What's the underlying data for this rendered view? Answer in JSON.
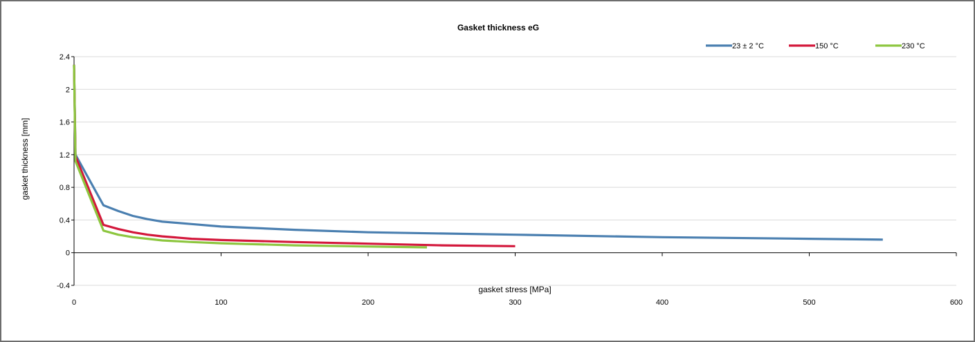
{
  "chart_data": {
    "type": "line",
    "title": "Gasket thickness eG",
    "xlabel": "gasket stress [MPa]",
    "ylabel": "gasket thickness [mm]",
    "xlim": [
      0,
      600
    ],
    "ylim": [
      -0.4,
      2.4
    ],
    "xticks": [
      0,
      100,
      200,
      300,
      400,
      500,
      600
    ],
    "yticks": [
      -0.4,
      0,
      0.4,
      0.8,
      1.2,
      1.6,
      2,
      2.4
    ],
    "grid": true,
    "legend_position": "top-right",
    "series": [
      {
        "name": "23 ± 2 °C",
        "color": "#4a7fb0",
        "x": [
          0,
          1,
          20,
          30,
          40,
          50,
          60,
          80,
          100,
          150,
          200,
          300,
          400,
          500,
          550
        ],
        "y": [
          2.3,
          1.2,
          0.58,
          0.51,
          0.45,
          0.41,
          0.38,
          0.35,
          0.32,
          0.28,
          0.25,
          0.22,
          0.19,
          0.17,
          0.16
        ]
      },
      {
        "name": "150 °C",
        "color": "#d3173b",
        "x": [
          0,
          1,
          20,
          30,
          40,
          50,
          60,
          80,
          100,
          150,
          200,
          250,
          300
        ],
        "y": [
          2.3,
          1.18,
          0.34,
          0.29,
          0.25,
          0.22,
          0.2,
          0.17,
          0.155,
          0.13,
          0.11,
          0.09,
          0.08
        ]
      },
      {
        "name": "230 °C",
        "color": "#8dc63f",
        "x": [
          0,
          1,
          20,
          30,
          40,
          50,
          60,
          80,
          100,
          150,
          200,
          240
        ],
        "y": [
          2.3,
          1.12,
          0.27,
          0.22,
          0.19,
          0.17,
          0.15,
          0.13,
          0.115,
          0.09,
          0.075,
          0.065
        ]
      }
    ]
  }
}
